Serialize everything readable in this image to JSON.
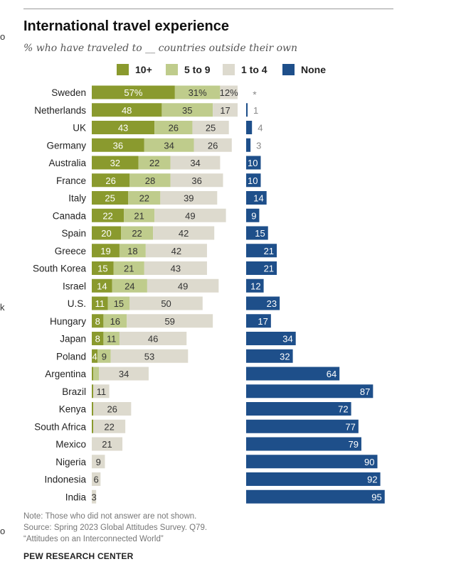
{
  "chart_data": {
    "type": "bar",
    "title": "International travel experience",
    "subtitle": "% who have traveled to __ countries outside their own",
    "categories": [
      "Sweden",
      "Netherlands",
      "UK",
      "Germany",
      "Australia",
      "France",
      "Italy",
      "Canada",
      "Spain",
      "Greece",
      "South Korea",
      "Israel",
      "U.S.",
      "Hungary",
      "Japan",
      "Poland",
      "Argentina",
      "Brazil",
      "Kenya",
      "South Africa",
      "Mexico",
      "Nigeria",
      "Indonesia",
      "India"
    ],
    "series": [
      {
        "name": "10+",
        "color": "#8a9a2e",
        "values": [
          57,
          48,
          43,
          36,
          32,
          26,
          25,
          22,
          20,
          19,
          15,
          14,
          11,
          8,
          8,
          4,
          1,
          1,
          1,
          1,
          0,
          0,
          0,
          0
        ],
        "labels": [
          "57%",
          "48",
          "43",
          "36",
          "32",
          "26",
          "25",
          "22",
          "20",
          "19",
          "15",
          "14",
          "11",
          "8",
          "8",
          "4",
          "",
          "",
          "",
          "",
          "",
          "",
          "",
          ""
        ]
      },
      {
        "name": "5 to 9",
        "color": "#bfcc8c",
        "values": [
          31,
          35,
          26,
          34,
          22,
          28,
          22,
          21,
          22,
          18,
          21,
          24,
          15,
          16,
          11,
          9,
          4,
          0,
          0,
          0,
          0,
          0,
          0,
          0
        ],
        "labels": [
          "31%",
          "35",
          "26",
          "34",
          "22",
          "28",
          "22",
          "21",
          "22",
          "18",
          "21",
          "24",
          "15",
          "16",
          "11",
          "9",
          "",
          "",
          "",
          "",
          "",
          "",
          "",
          ""
        ]
      },
      {
        "name": "1 to 4",
        "color": "#dddace",
        "values": [
          12,
          17,
          25,
          26,
          34,
          36,
          39,
          49,
          42,
          42,
          43,
          49,
          50,
          59,
          46,
          53,
          34,
          11,
          26,
          22,
          21,
          9,
          6,
          3
        ],
        "labels": [
          "12%",
          "17",
          "25",
          "26",
          "34",
          "36",
          "39",
          "49",
          "42",
          "42",
          "43",
          "49",
          "50",
          "59",
          "46",
          "53",
          "34",
          "11",
          "26",
          "22",
          "21",
          "9",
          "6",
          "3"
        ]
      },
      {
        "name": "None",
        "color": "#1e4f8a",
        "values": [
          0,
          1,
          4,
          3,
          10,
          10,
          14,
          9,
          15,
          21,
          21,
          12,
          23,
          17,
          34,
          32,
          64,
          87,
          72,
          77,
          79,
          90,
          92,
          95
        ],
        "labels": [
          "*",
          "1",
          "4",
          "3",
          "10",
          "10",
          "14",
          "9",
          "15",
          "21",
          "21",
          "12",
          "23",
          "17",
          "34",
          "32",
          "64",
          "87",
          "72",
          "77",
          "79",
          "90",
          "92",
          "95"
        ]
      }
    ]
  },
  "note": {
    "line1": "Note: Those who did not answer are not shown.",
    "line2": "Source: Spring 2023 Global Attitudes Survey. Q79.",
    "line3": "“Attitudes on an Interconnected World”"
  },
  "credit": "PEW RESEARCH CENTER",
  "edge_marks": [
    "o",
    "k",
    "o"
  ]
}
